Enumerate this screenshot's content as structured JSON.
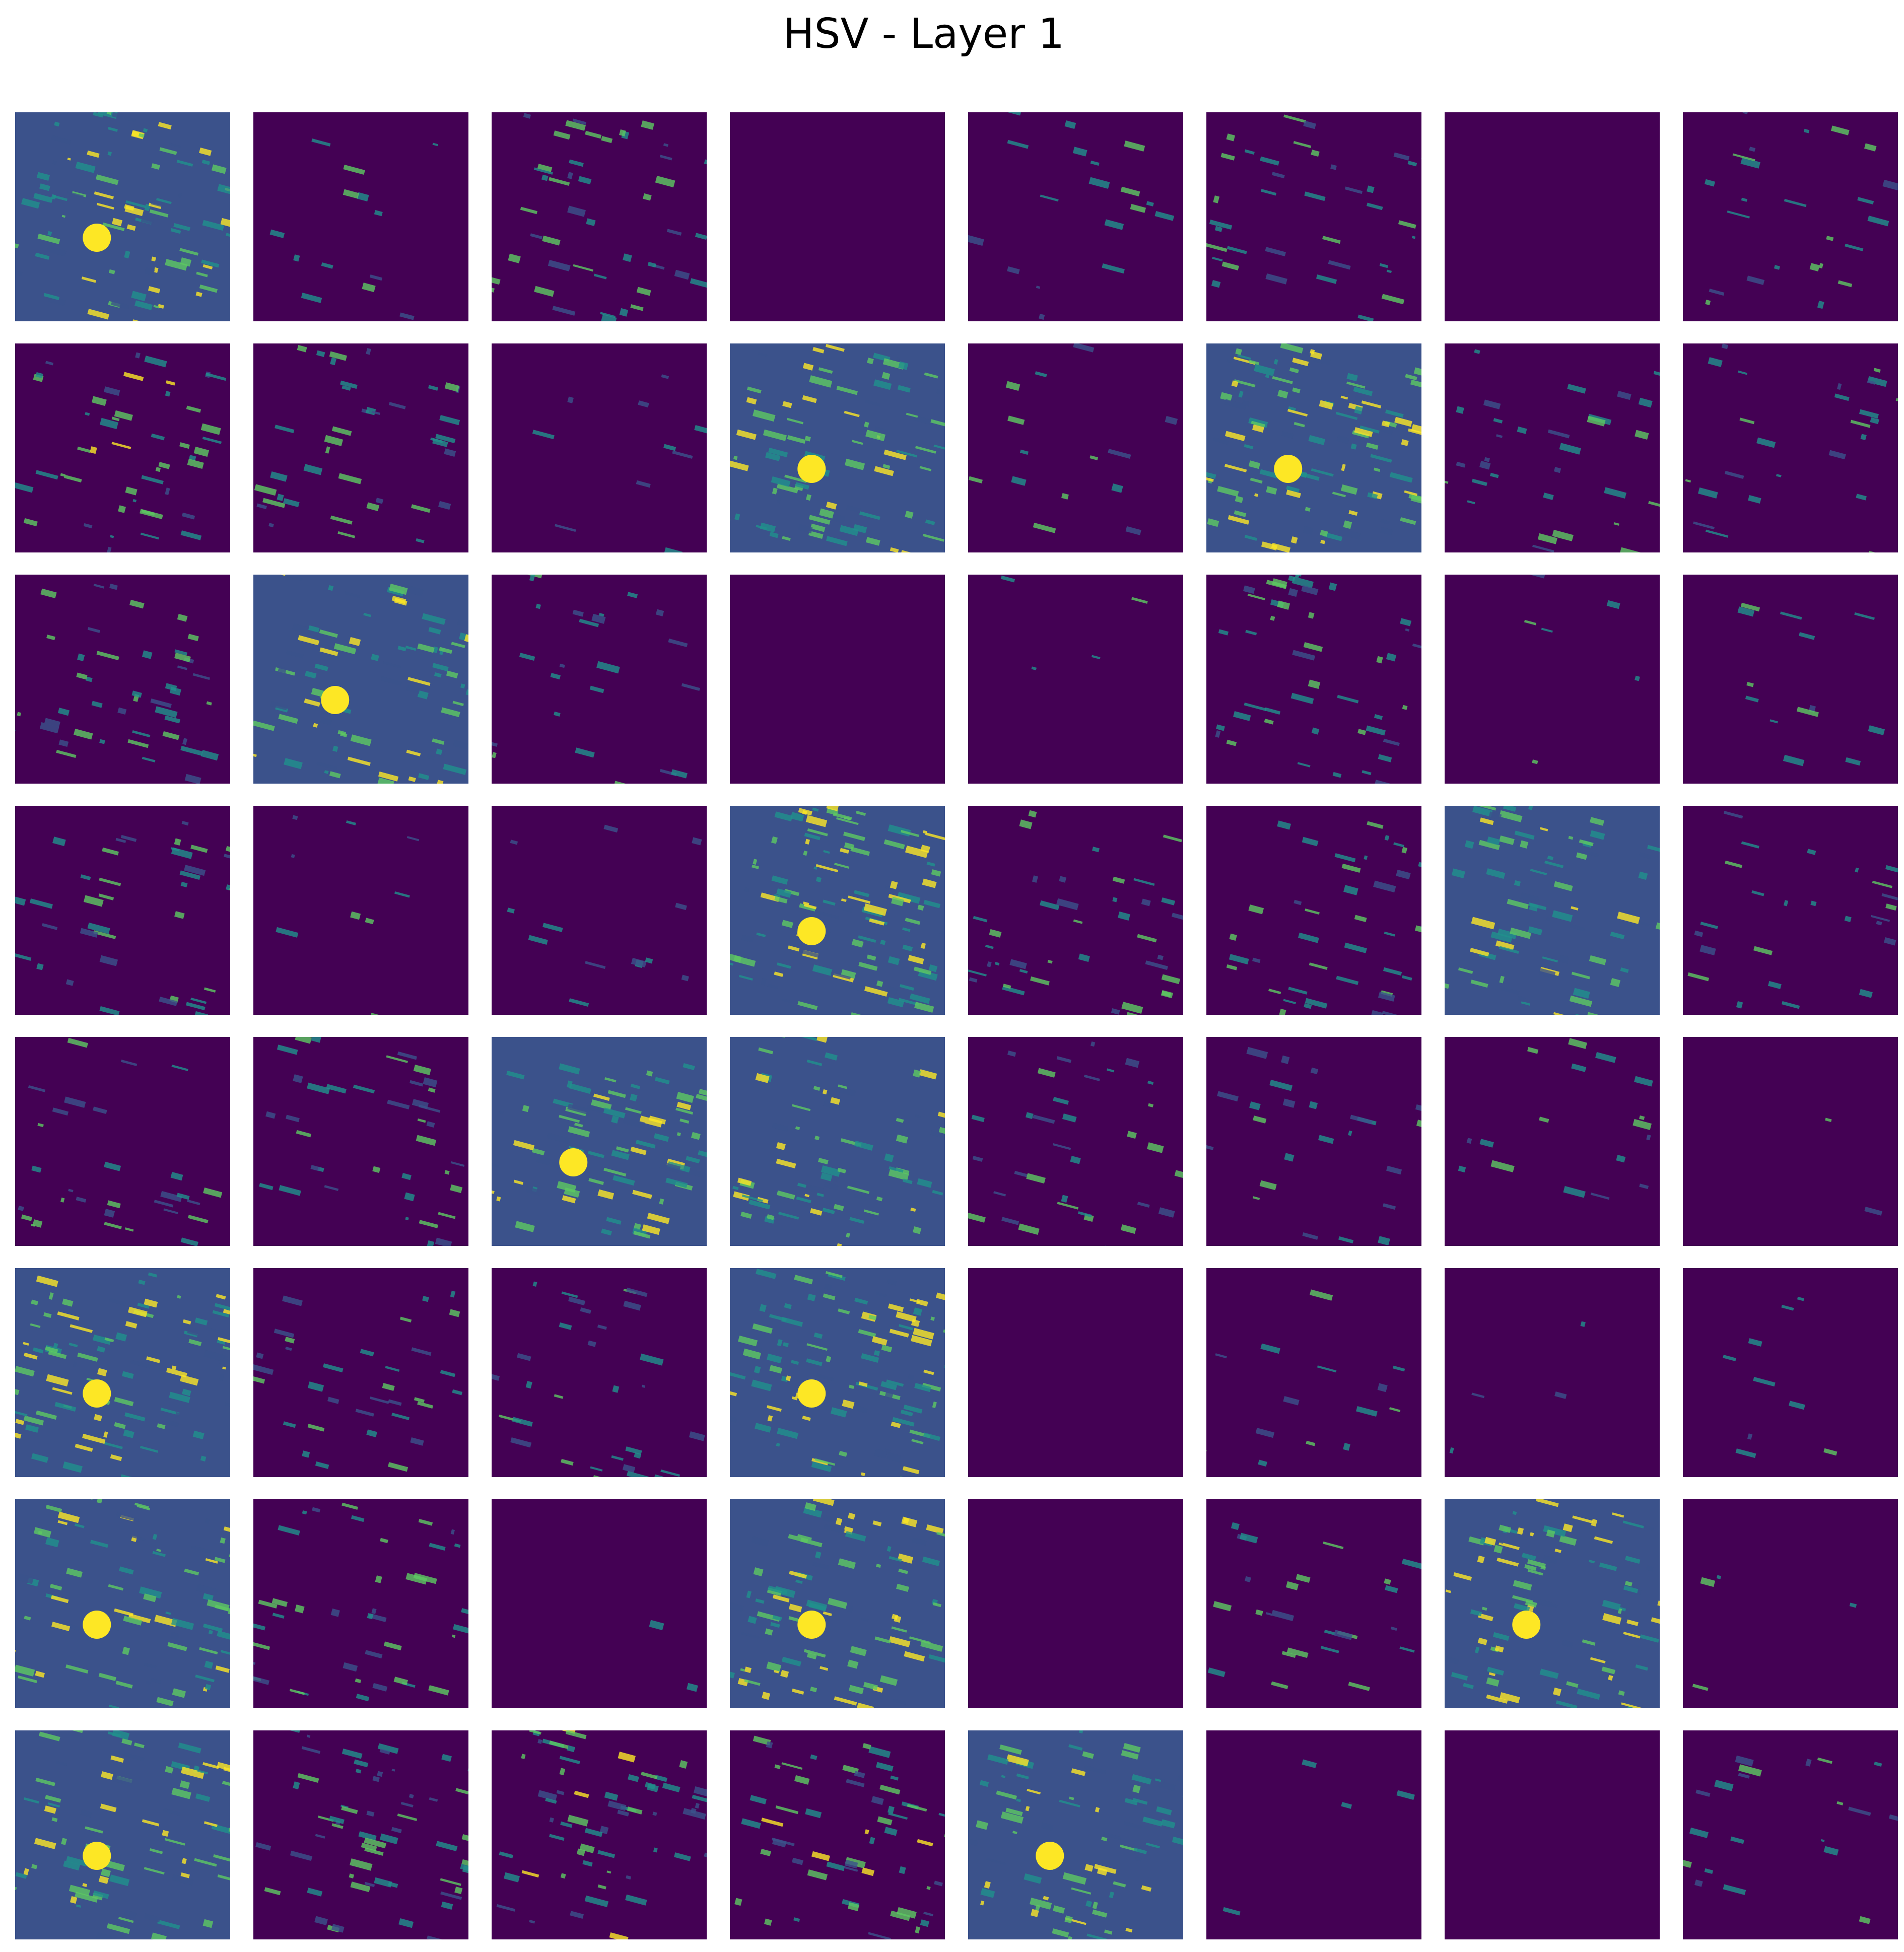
{
  "figure": {
    "title": "HSV - Layer 1",
    "colormap": [
      "#440154",
      "#3b528b",
      "#21918c",
      "#5ec962",
      "#fde725"
    ]
  },
  "feature_maps": {
    "rows": 8,
    "cols": 8,
    "count": 64,
    "mean_activation": [
      0.45,
      0.06,
      0.22,
      0.0,
      0.08,
      0.18,
      0.0,
      0.12,
      0.25,
      0.18,
      0.05,
      0.42,
      0.07,
      0.55,
      0.15,
      0.12,
      0.22,
      0.4,
      0.12,
      0.0,
      0.02,
      0.22,
      0.03,
      0.07,
      0.2,
      0.05,
      0.07,
      0.55,
      0.18,
      0.18,
      0.35,
      0.12,
      0.15,
      0.2,
      0.38,
      0.35,
      0.18,
      0.12,
      0.09,
      0.01,
      0.45,
      0.15,
      0.15,
      0.5,
      0.0,
      0.07,
      0.02,
      0.04,
      0.4,
      0.2,
      0.01,
      0.45,
      0.0,
      0.12,
      0.45,
      0.02,
      0.4,
      0.28,
      0.3,
      0.28,
      0.38,
      0.02,
      0.0,
      0.1
    ]
  }
}
